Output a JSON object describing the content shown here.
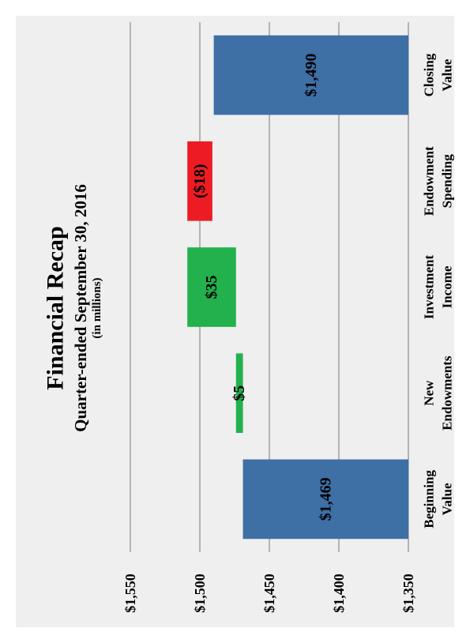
{
  "chart_data": {
    "type": "waterfall",
    "title": "Financial Recap",
    "subtitle": "Quarter-ended September 30, 2016",
    "unit_note": "(in millions)",
    "ylim": [
      1350,
      1550
    ],
    "yticks": [
      1350,
      1400,
      1450,
      1500,
      1550
    ],
    "ytick_labels": [
      "$1,350",
      "$1,400",
      "$1,450",
      "$1,500",
      "$1,550"
    ],
    "grid": true,
    "categories": [
      {
        "line1": "Beginning",
        "line2": "Value"
      },
      {
        "line1": "New",
        "line2": "Endowments"
      },
      {
        "line1": "Investment",
        "line2": "Income"
      },
      {
        "line1": "Endowment",
        "line2": "Spending"
      },
      {
        "line1": "Closing",
        "line2": "Value"
      }
    ],
    "bars": [
      {
        "kind": "total",
        "value": 1469,
        "label": "$1,469",
        "color": "#3e6fa5"
      },
      {
        "kind": "delta",
        "value": 5,
        "label": "$5",
        "color": "#22b14c"
      },
      {
        "kind": "delta",
        "value": 35,
        "label": "$35",
        "color": "#22b14c"
      },
      {
        "kind": "delta",
        "value": -18,
        "label": "($18)",
        "color": "#ed1c24"
      },
      {
        "kind": "total",
        "value": 1490,
        "label": "$1,490",
        "color": "#3e6fa5"
      }
    ],
    "colors": {
      "total": "#3e6fa5",
      "increase": "#22b14c",
      "decrease": "#ed1c24",
      "grid": "#8c8c8c",
      "background": "#efefef"
    }
  }
}
